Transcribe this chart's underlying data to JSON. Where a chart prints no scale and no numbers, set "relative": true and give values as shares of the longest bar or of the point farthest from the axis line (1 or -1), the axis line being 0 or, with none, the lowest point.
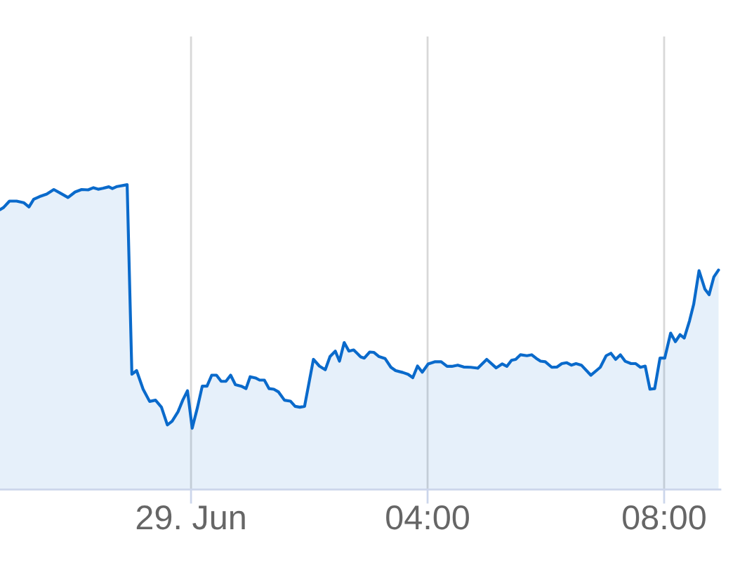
{
  "chart_data": {
    "type": "area",
    "relative": true,
    "x": [
      -3.23,
      -3.17,
      -3.07,
      -2.95,
      -2.83,
      -2.74,
      -2.66,
      -2.56,
      -2.44,
      -2.32,
      -2.2,
      -2.08,
      -1.96,
      -1.85,
      -1.74,
      -1.65,
      -1.57,
      -1.49,
      -1.39,
      -1.33,
      -1.25,
      -1.08,
      -1.0,
      -0.92,
      -0.81,
      -0.7,
      -0.6,
      -0.5,
      -0.4,
      -0.32,
      -0.22,
      -0.14,
      -0.06,
      0.02,
      0.11,
      0.19,
      0.27,
      0.35,
      0.43,
      0.51,
      0.59,
      0.67,
      0.75,
      0.85,
      0.93,
      1.0,
      1.09,
      1.16,
      1.24,
      1.32,
      1.4,
      1.48,
      1.58,
      1.68,
      1.76,
      1.84,
      1.92,
      2.0,
      2.07,
      2.17,
      2.27,
      2.35,
      2.44,
      2.51,
      2.59,
      2.67,
      2.75,
      2.87,
      2.93,
      3.02,
      3.09,
      3.18,
      3.28,
      3.38,
      3.46,
      3.58,
      3.67,
      3.75,
      3.83,
      3.91,
      4.01,
      4.12,
      4.23,
      4.33,
      4.41,
      4.51,
      4.61,
      4.73,
      4.85,
      5.0,
      5.16,
      5.26,
      5.34,
      5.42,
      5.49,
      5.57,
      5.68,
      5.76,
      5.84,
      5.91,
      5.99,
      6.1,
      6.19,
      6.27,
      6.35,
      6.43,
      6.51,
      6.6,
      6.76,
      6.92,
      7.02,
      7.1,
      7.18,
      7.26,
      7.34,
      7.44,
      7.52,
      7.6,
      7.68,
      7.76,
      7.84,
      7.93,
      8.01,
      8.11,
      8.19,
      8.27,
      8.34,
      8.43,
      8.5,
      8.59,
      8.69,
      8.76,
      8.84,
      8.92
    ],
    "series": [
      {
        "color": "#0a6acb",
        "values": [
          0.918,
          0.925,
          0.946,
          0.946,
          0.941,
          0.927,
          0.952,
          0.961,
          0.969,
          0.984,
          0.971,
          0.958,
          0.976,
          0.984,
          0.983,
          0.99,
          0.985,
          0.988,
          0.993,
          0.987,
          0.994,
          1.0,
          0.378,
          0.39,
          0.329,
          0.289,
          0.293,
          0.27,
          0.212,
          0.224,
          0.255,
          0.293,
          0.324,
          0.201,
          0.27,
          0.339,
          0.339,
          0.375,
          0.375,
          0.355,
          0.355,
          0.375,
          0.344,
          0.339,
          0.331,
          0.37,
          0.366,
          0.359,
          0.359,
          0.331,
          0.329,
          0.32,
          0.293,
          0.29,
          0.273,
          0.27,
          0.273,
          0.355,
          0.427,
          0.405,
          0.393,
          0.436,
          0.454,
          0.421,
          0.482,
          0.454,
          0.458,
          0.435,
          0.431,
          0.451,
          0.45,
          0.436,
          0.43,
          0.401,
          0.39,
          0.384,
          0.378,
          0.367,
          0.405,
          0.385,
          0.412,
          0.419,
          0.419,
          0.404,
          0.404,
          0.408,
          0.402,
          0.401,
          0.398,
          0.427,
          0.399,
          0.412,
          0.404,
          0.424,
          0.427,
          0.442,
          0.439,
          0.442,
          0.43,
          0.421,
          0.419,
          0.401,
          0.402,
          0.413,
          0.416,
          0.408,
          0.413,
          0.408,
          0.375,
          0.401,
          0.439,
          0.447,
          0.427,
          0.442,
          0.421,
          0.413,
          0.413,
          0.401,
          0.405,
          0.329,
          0.331,
          0.431,
          0.431,
          0.513,
          0.485,
          0.508,
          0.497,
          0.554,
          0.608,
          0.718,
          0.657,
          0.639,
          0.697,
          0.72
        ]
      }
    ],
    "xlim": [
      -3.23,
      8.95
    ],
    "xticks": [
      {
        "value": 0,
        "label": "29. Jun"
      },
      {
        "value": 4,
        "label": "04:00"
      },
      {
        "value": 8,
        "label": "08:00"
      }
    ],
    "grid": "x",
    "tick_labels": "x"
  }
}
